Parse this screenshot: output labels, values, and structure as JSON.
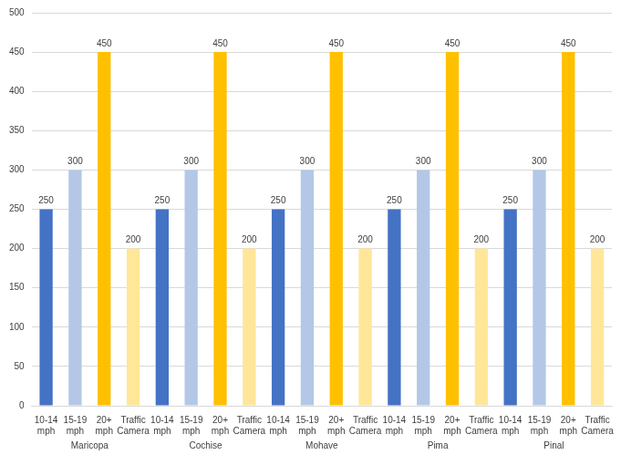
{
  "chart_data": {
    "type": "bar",
    "categories": [
      "Maricopa",
      "Cochise",
      "Mohave",
      "Pima",
      "Pinal"
    ],
    "series": [
      {
        "name": "10-14 mph",
        "color": "#4472c4",
        "values": [
          250,
          250,
          250,
          250,
          250
        ]
      },
      {
        "name": "15-19 mph",
        "color": "#b4c7e7",
        "values": [
          300,
          300,
          300,
          300,
          300
        ]
      },
      {
        "name": "20+ mph",
        "color": "#ffc000",
        "values": [
          450,
          450,
          450,
          450,
          450
        ]
      },
      {
        "name": "Traffic Camera",
        "color": "#ffe699",
        "values": [
          200,
          200,
          200,
          200,
          200
        ]
      }
    ],
    "ylim": [
      0,
      500
    ],
    "yticks": [
      0,
      50,
      100,
      150,
      200,
      250,
      300,
      350,
      400,
      450,
      500
    ],
    "grid": true,
    "data_labels": true
  }
}
